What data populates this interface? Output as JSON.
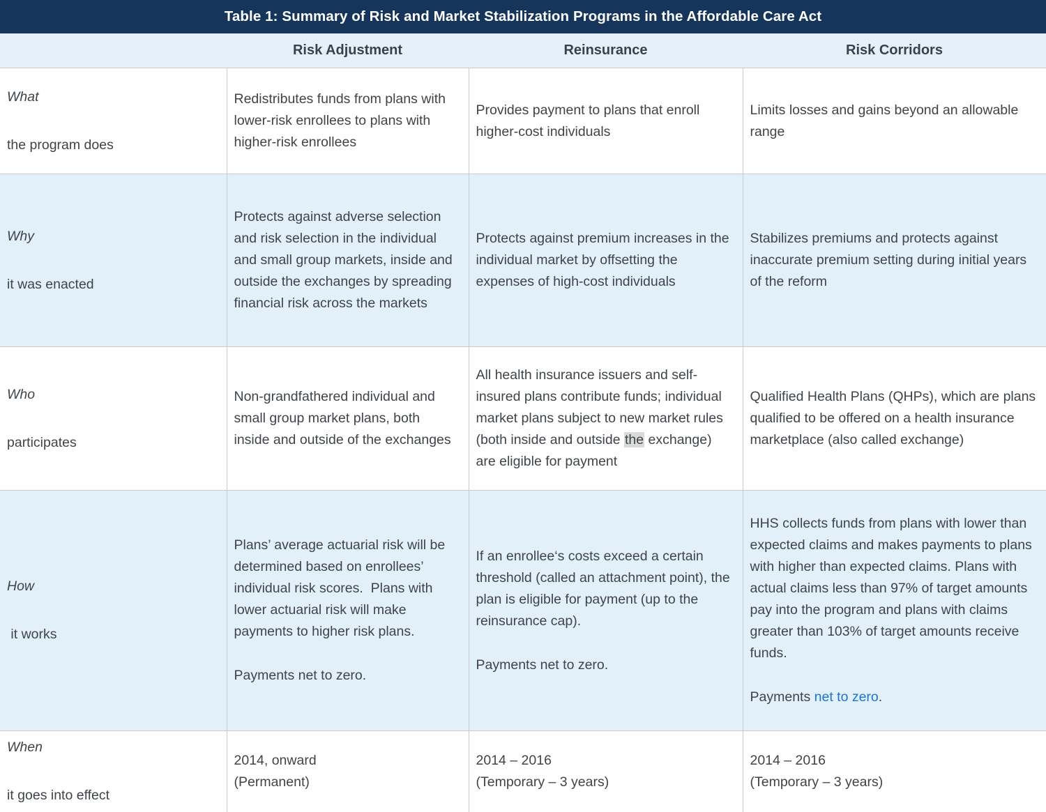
{
  "title_bar": {
    "title": "Table 1: Summary of Risk and Market Stabilization Programs in the Affordable Care Act"
  },
  "table": {
    "column_headers": [
      "Risk Adjustment",
      "Reinsurance",
      "Risk Corridors"
    ],
    "rows": {
      "what": {
        "label_word": "What",
        "label_sub": "the program does",
        "risk_adjustment": "Redistributes funds from plans with lower-risk enrollees to plans with higher-risk enrollees",
        "reinsurance": "Provides payment to plans that enroll higher-cost individuals",
        "risk_corridors": "Limits losses and gains beyond an allowable range"
      },
      "why": {
        "label_word": "Why",
        "label_sub": "it was enacted",
        "risk_adjustment": "Protects against adverse selection and risk selection in the individual and small group markets, inside and outside the exchanges by spreading financial risk across the markets",
        "reinsurance": "Protects against premium increases in the individual market by offsetting the expenses of high-cost individuals",
        "risk_corridors": "Stabilizes premiums and protects against inaccurate premium setting during initial years of the reform"
      },
      "who": {
        "label_word": "Who",
        "label_sub": "participates",
        "risk_adjustment": "Non-grandfathered individual and small group market plans, both inside and outside of the exchanges",
        "reinsurance_pre": "All health insurance issuers and self-insured plans contribute funds; individual market plans subject to new market rules (both inside and outside ",
        "reinsurance_highlight": "the",
        "reinsurance_post": " exchange) are eligible for payment",
        "risk_corridors": "Qualified Health Plans (QHPs), which are plans qualified to be offered on a health insurance marketplace (also called exchange)"
      },
      "how": {
        "label_word": "How",
        "label_sub": " it works",
        "risk_adjustment_p1": "Plans’ average actuarial risk will be determined based on enrollees’ individual risk scores.  Plans with lower actuarial risk will make payments to higher risk plans.",
        "risk_adjustment_p2": "Payments net to zero.",
        "reinsurance_p1": "If an enrollee‘s costs exceed a certain threshold (called an attachment point), the plan is eligible for payment (up to the reinsurance cap).",
        "reinsurance_p2": "Payments net to zero.",
        "risk_corridors_p1": "HHS collects funds from plans with lower than expected claims and makes payments to plans with higher than expected claims. Plans with actual claims less than 97% of target amounts pay into the program and plans with claims greater than 103% of target amounts receive funds.",
        "risk_corridors_p2_pre": "Payments ",
        "risk_corridors_link": "net to zero",
        "risk_corridors_p2_post": "."
      },
      "when": {
        "label_word": "When",
        "label_sub": "it goes into effect",
        "risk_adjustment_l1": "2014, onward",
        "risk_adjustment_l2": "(Permanent)",
        "reinsurance_l1": "2014 – 2016",
        "reinsurance_l2": "(Temporary – 3 years)",
        "risk_corridors_l1": "2014 – 2016",
        "risk_corridors_l2": "(Temporary – 3 years)"
      }
    }
  },
  "colors": {
    "header_navy": "#15355b",
    "row_blue": "#e2f0f9",
    "header_row_blue": "#e4f1fa",
    "text": "#3f4448",
    "border": "#cbcbcb",
    "link_blue": "#1c76ce",
    "highlight_gray": "#dadada"
  }
}
